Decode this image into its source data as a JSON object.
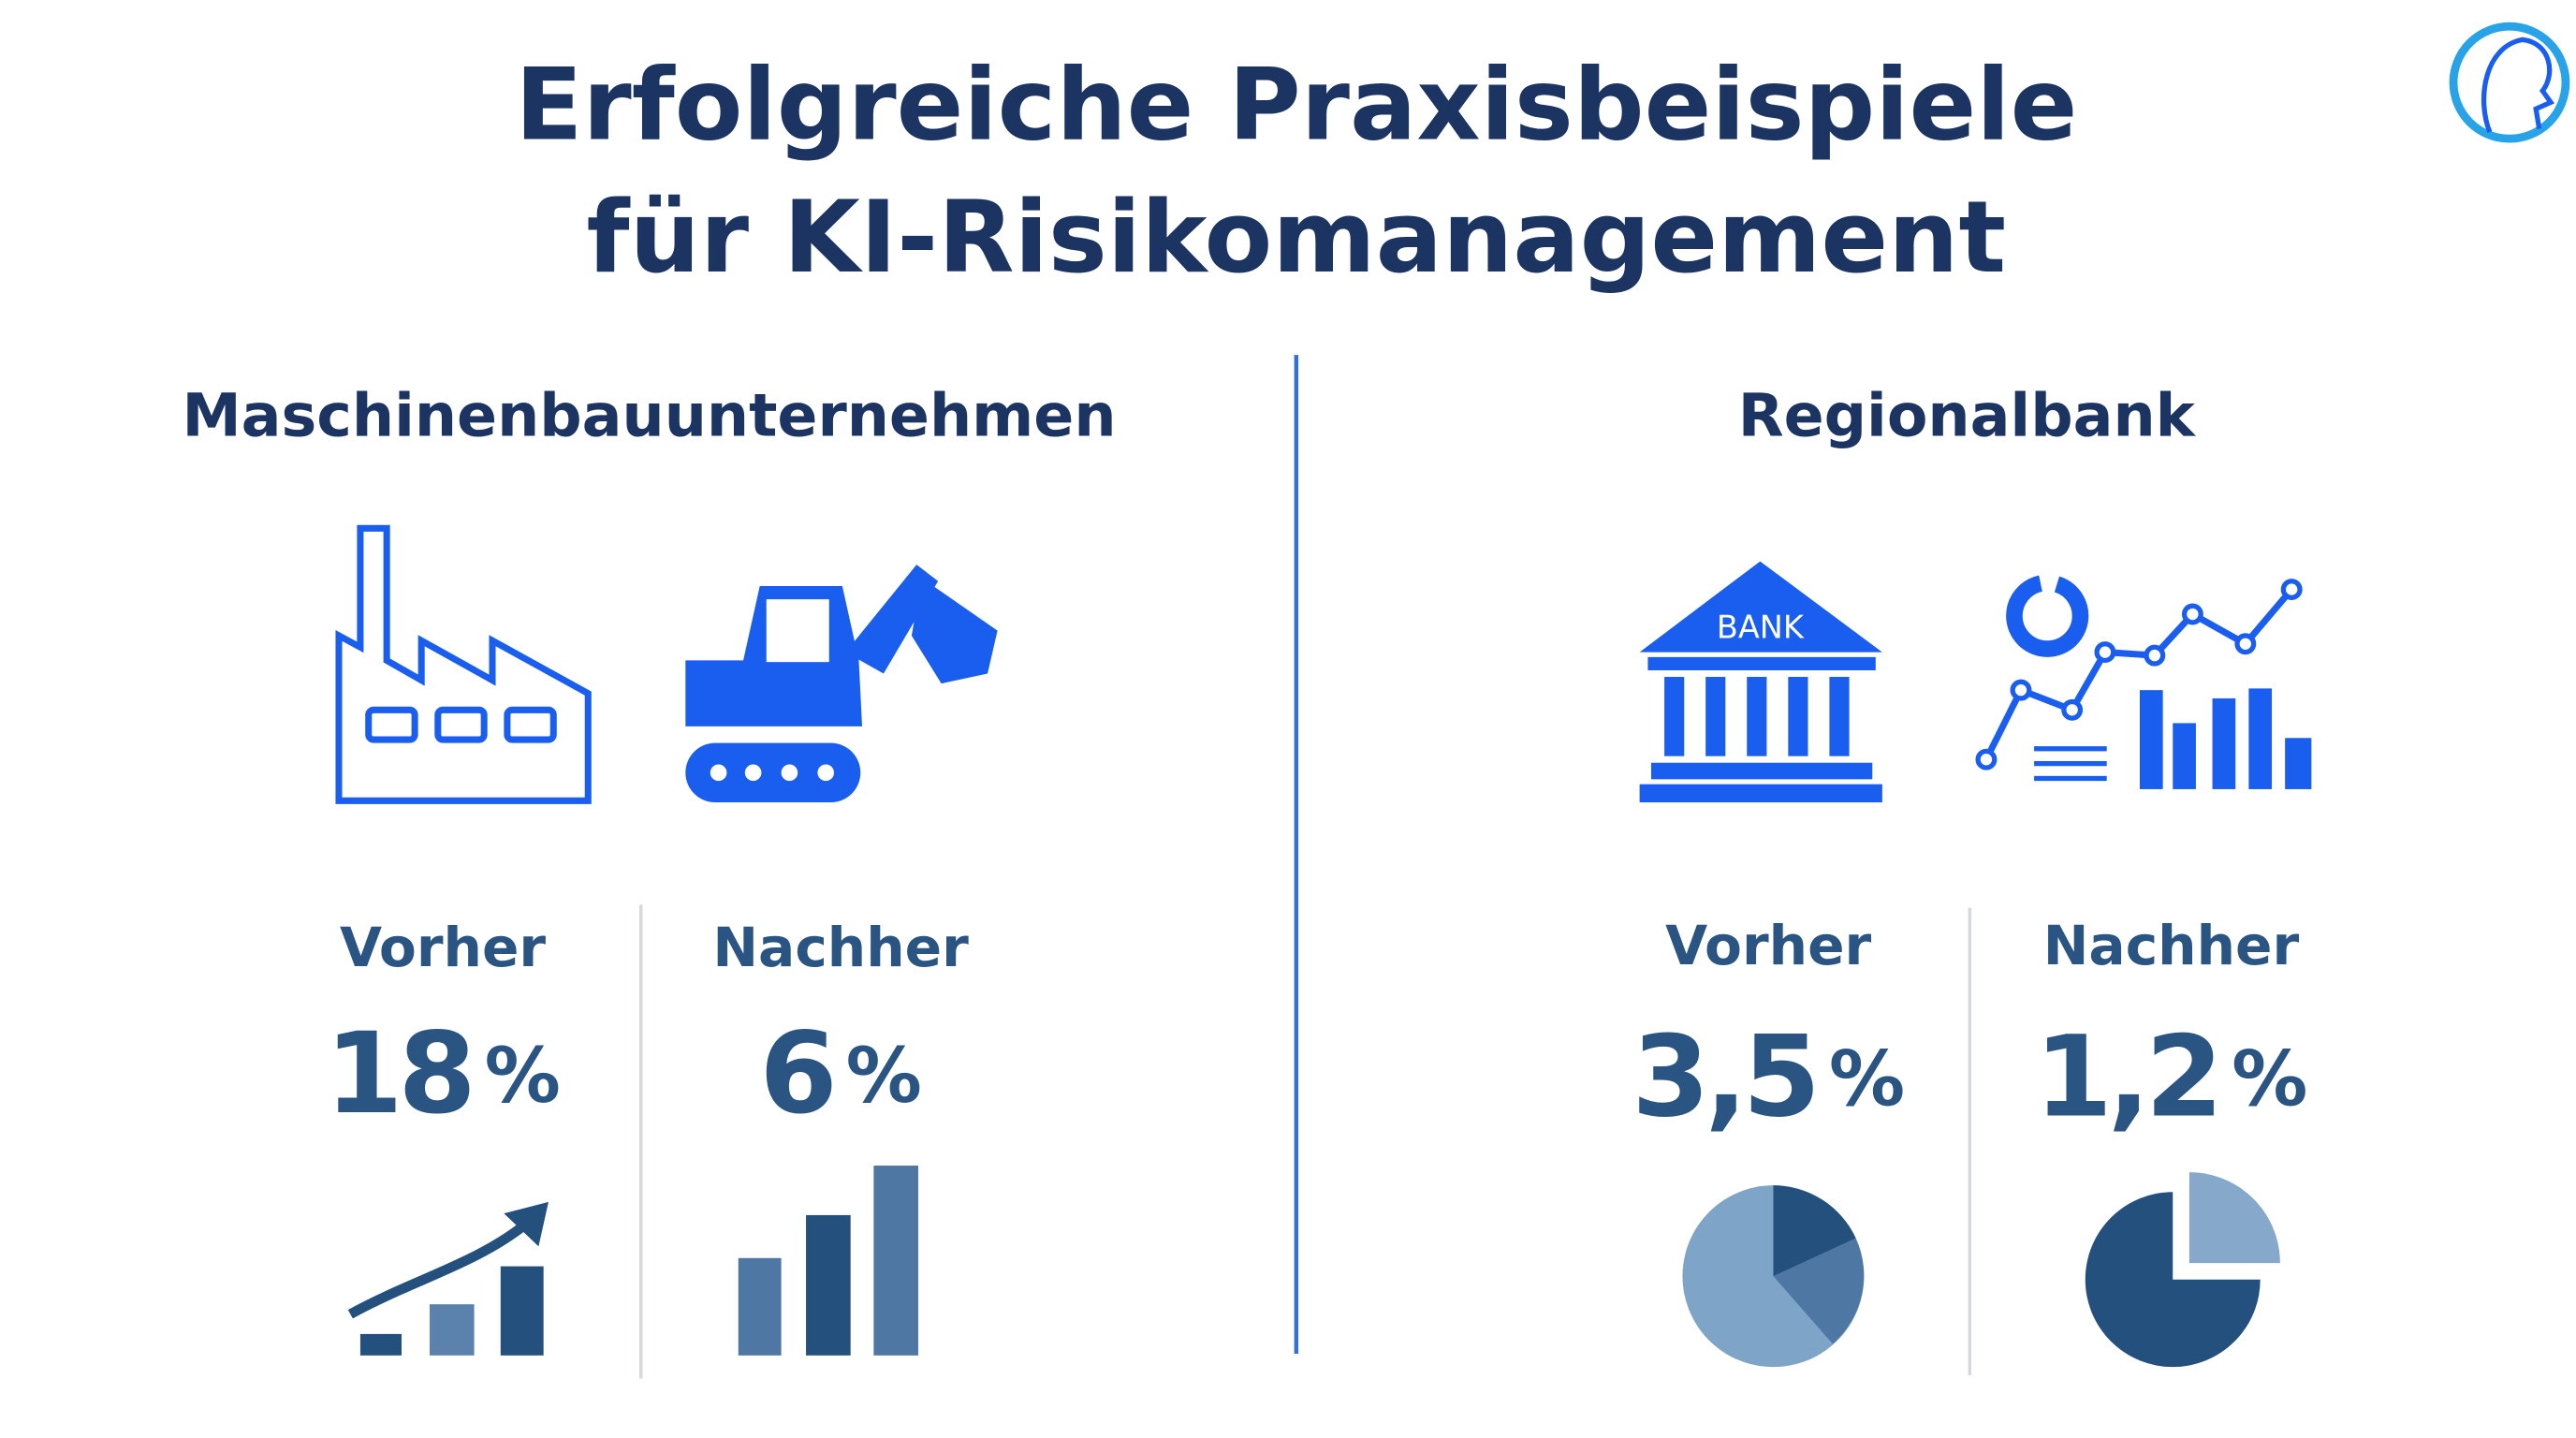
{
  "header": {
    "title_lines": [
      "Erfolgreiche Praxisbeispiele",
      "für KI-Risikomanagement"
    ]
  },
  "cases": [
    {
      "name": "Maschinenbauunternehmen",
      "before": {
        "label": "Vorher",
        "value": "18",
        "unit": "%"
      },
      "after": {
        "label": "Nachher",
        "value": "6",
        "unit": "%"
      }
    },
    {
      "name": "Regionalbank",
      "before": {
        "label": "Vorher",
        "value": "3,5",
        "unit": "%"
      },
      "after": {
        "label": "Nachher",
        "value": "1,2",
        "unit": "%"
      }
    }
  ],
  "icon_text": "BANK"
}
